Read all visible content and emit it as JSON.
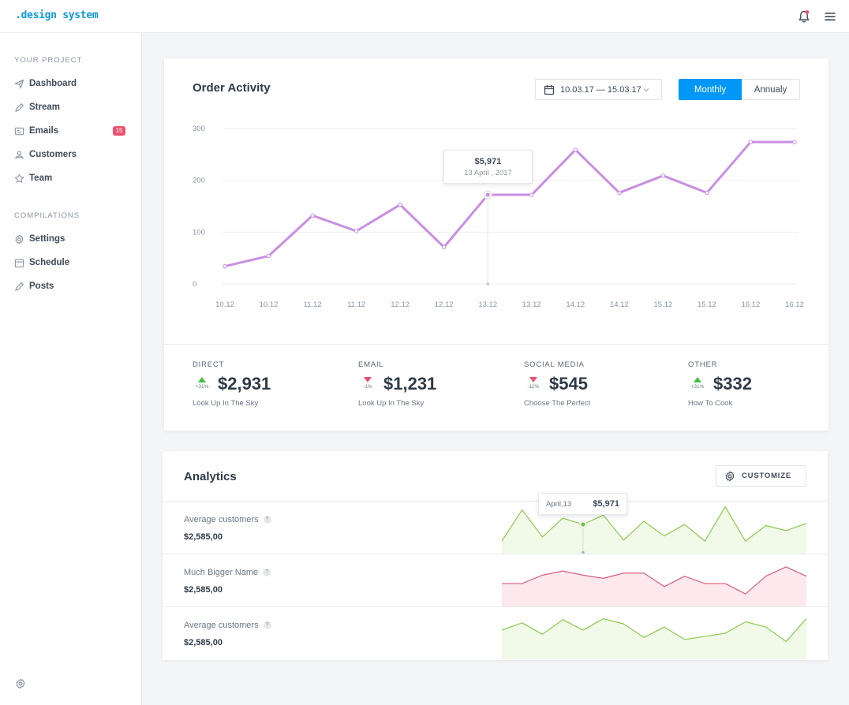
{
  "app": {
    "brand": ".design system"
  },
  "sidebar": {
    "sections": [
      {
        "title": "YOUR PROJECT",
        "items": [
          {
            "label": "Dashboard",
            "icon": "send-icon"
          },
          {
            "label": "Stream",
            "icon": "pencil-icon"
          },
          {
            "label": "Emails",
            "icon": "email-icon",
            "badge": "15"
          },
          {
            "label": "Customers",
            "icon": "users-icon"
          },
          {
            "label": "Team",
            "icon": "star-icon"
          }
        ]
      },
      {
        "title": "COMPILATIONS",
        "items": [
          {
            "label": "Settings",
            "icon": "gear-icon"
          },
          {
            "label": "Schedule",
            "icon": "calendar-icon"
          },
          {
            "label": "Posts",
            "icon": "pencil-icon"
          }
        ]
      }
    ]
  },
  "order": {
    "title": "Order Activity",
    "date_range": "10.03.17 — 15.03.17",
    "toggle": {
      "active": "Monthly",
      "inactive": "Annualy"
    },
    "tooltip": {
      "value": "$5,971",
      "date": "13 April , 2017"
    },
    "stats": [
      {
        "label": "DIRECT",
        "change": "+31%",
        "trend": "up",
        "value": "$2,931",
        "sub": "Look Up In The Sky"
      },
      {
        "label": "EMAIL",
        "change": "-1%",
        "trend": "down",
        "value": "$1,231",
        "sub": "Look Up In The Sky"
      },
      {
        "label": "SOCIAL MEDIA",
        "change": "-12%",
        "trend": "down",
        "value": "$545",
        "sub": "Choose The Perfect"
      },
      {
        "label": "OTHER",
        "change": "+31%",
        "trend": "up",
        "value": "$332",
        "sub": "How To Cook"
      }
    ]
  },
  "chart_data": {
    "type": "line",
    "categories": [
      "10.12",
      "10.12",
      "11.12",
      "11.12",
      "12.12",
      "12.12",
      "13.12",
      "13.12",
      "14.12",
      "14.12",
      "15.12",
      "15.12",
      "16.12",
      "16.12"
    ],
    "values": [
      34,
      54,
      132,
      102,
      153,
      71,
      172,
      172,
      259,
      176,
      209,
      176,
      274,
      274
    ],
    "yticks": [
      0,
      100,
      200,
      300
    ],
    "ylim": [
      0,
      300
    ],
    "color": "#c98ee3",
    "highlight_index": 6
  },
  "analytics": {
    "title": "Analytics",
    "customize_label": "CUSTOMIZE",
    "tooltip": {
      "date": "April,13",
      "value": "$5,971"
    },
    "rows": [
      {
        "name": "Average customers",
        "value": "$2,585,00",
        "color": "#8cc94a",
        "fill": "#f1f9e9",
        "data": [
          12,
          42,
          16,
          34,
          28,
          37,
          13,
          31,
          17,
          28,
          12,
          45,
          12,
          27,
          22,
          29
        ]
      },
      {
        "name": "Much Bigger Name",
        "value": "$2,585,00",
        "color": "#d9607a",
        "fill": "#fde8ee",
        "data": [
          22,
          22,
          30,
          34,
          30,
          27,
          32,
          32,
          19,
          29,
          22,
          22,
          12,
          29,
          38,
          29
        ]
      },
      {
        "name": "Average customers",
        "value": "$2,585,00",
        "color": "#8cc94a",
        "fill": "#f1f9e9",
        "data": [
          28,
          35,
          24,
          38,
          28,
          39,
          34,
          21,
          31,
          19,
          22,
          25,
          36,
          31,
          17,
          39
        ]
      }
    ],
    "highlight_index": 4
  }
}
